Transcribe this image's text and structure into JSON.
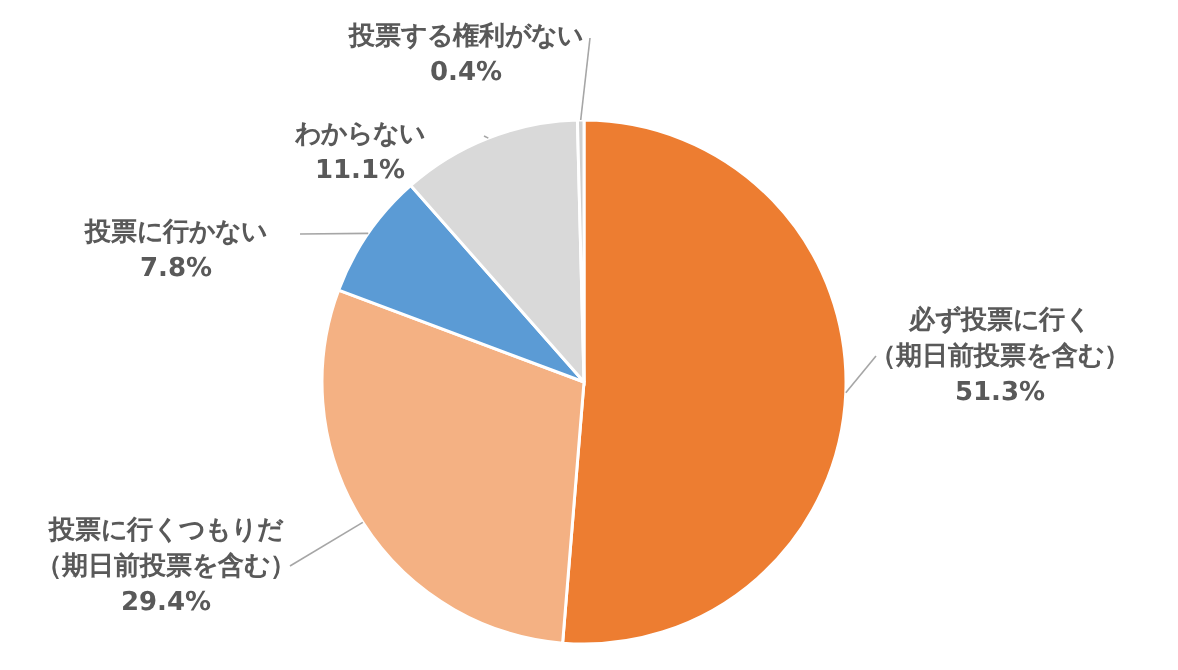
{
  "chart_data": {
    "type": "pie",
    "categories": [
      "必ず投票に行く（期日前投票を含む）",
      "投票に行くつもりだ（期日前投票を含む）",
      "投票に行かない",
      "わからない",
      "投票する権利がない"
    ],
    "values": [
      51.3,
      29.4,
      7.8,
      11.1,
      0.4
    ],
    "value_labels": [
      "51.3%",
      "29.4%",
      "7.8%",
      "11.1%",
      "0.4%"
    ],
    "colors": [
      "#ed7d31",
      "#f4b183",
      "#5b9bd5",
      "#d9d9d9",
      "#cfcfcf"
    ]
  }
}
